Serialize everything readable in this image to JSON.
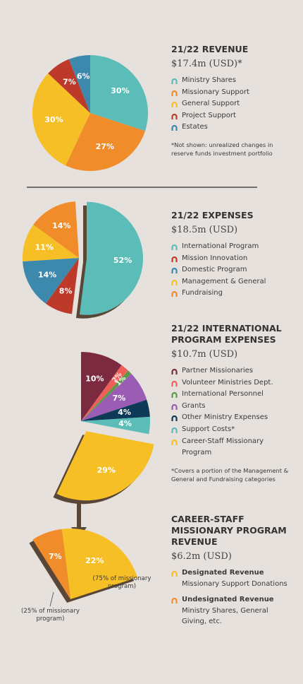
{
  "chart_data": [
    {
      "type": "pie",
      "title": "21/22 REVENUE",
      "subtitle": "$17.4m (USD)*",
      "categories": [
        "Ministry Shares",
        "Missionary Support",
        "General Support",
        "Project Support",
        "Estates"
      ],
      "values": [
        30,
        27,
        30,
        7,
        6
      ],
      "value_labels": [
        "30%",
        "27%",
        "30%",
        "7%",
        "6%"
      ],
      "colors": [
        "#5bbcb8",
        "#f08c2a",
        "#f6bf26",
        "#bd3a2b",
        "#3d88ad"
      ],
      "note": "*Not shown: unrealized changes in reserve funds investment portfolio"
    },
    {
      "type": "pie",
      "title": "21/22 EXPENSES",
      "subtitle": "$18.5m (USD)",
      "categories": [
        "International Program",
        "Mission Innovation",
        "Domestic Program",
        "Management & General",
        "Fundraising"
      ],
      "values": [
        52,
        8,
        14,
        11,
        14
      ],
      "value_labels": [
        "52%",
        "8%",
        "14%",
        "11%",
        "14%"
      ],
      "colors": [
        "#5bbcb8",
        "#bd3a2b",
        "#3d88ad",
        "#f6bf26",
        "#f08c2a"
      ]
    },
    {
      "type": "pie",
      "title": "21/22 INTERNATIONAL PROGRAM EXPENSES",
      "subtitle": "$10.7m (USD)",
      "categories": [
        "Partner Missionaries",
        "Volunteer Ministries Dept.",
        "International Personnel",
        "Grants",
        "Other Ministry Expenses",
        "Support Costs*",
        "Career-Staff Missionary Program"
      ],
      "values": [
        10,
        2,
        1,
        7,
        4,
        4,
        29
      ],
      "value_labels": [
        "10%",
        "2%",
        "1%",
        "7%",
        "4%",
        "4%",
        "29%"
      ],
      "colors": [
        "#7c2a40",
        "#ef5f5a",
        "#5c9a48",
        "#9a5cb4",
        "#0e3a58",
        "#5bbcb8",
        "#f6bf26"
      ],
      "note": "*Covers a portion of the Management & General and Fundraising categories"
    },
    {
      "type": "pie",
      "title": "CAREER-STAFF MISSIONARY PROGRAM REVENUE",
      "subtitle": "$6.2m (USD)",
      "categories": [
        "Designated Revenue",
        "Undesignated Revenue"
      ],
      "descriptions": [
        "Missionary Support Donations",
        "Ministry Shares, General Giving, etc."
      ],
      "values": [
        22,
        7
      ],
      "value_labels": [
        "22%",
        "7%"
      ],
      "colors": [
        "#f6bf26",
        "#f08c2a"
      ],
      "annotations": [
        "(75% of missionary program)",
        "(25% of missionary program)"
      ]
    }
  ]
}
